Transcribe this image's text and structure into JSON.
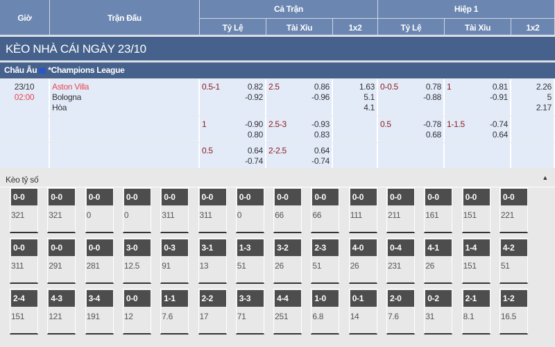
{
  "header": {
    "time": "Giờ",
    "match": "Trận Đấu",
    "full": "Cả Trận",
    "half": "Hiệp 1",
    "hcp": "Tỷ Lệ",
    "ou": "Tài Xỉu",
    "x12": "1x2"
  },
  "band_title": "KÈO NHÀ CÁI NGÀY 23/10",
  "league": {
    "region": "Châu Âu",
    "name": "*Champions League",
    "flag_icon": "eu-flag-icon"
  },
  "match": {
    "date": "23/10",
    "time": "02:00",
    "home": "Aston Villa",
    "away": "Bologna",
    "draw": "Hòa"
  },
  "rows": [
    {
      "ft_hcp": "0.5-1",
      "ft_hcp_o": [
        "0.82",
        "-0.92"
      ],
      "ft_ou": "2.5",
      "ft_ou_o": [
        "0.86",
        "-0.96"
      ],
      "ft_1x2": [
        "1.63",
        "5.1",
        "4.1"
      ],
      "h1_hcp": "0-0.5",
      "h1_hcp_o": [
        "0.78",
        "-0.88"
      ],
      "h1_ou": "1",
      "h1_ou_o": [
        "0.81",
        "-0.91"
      ],
      "h1_1x2": [
        "2.26",
        "5",
        "2.17"
      ]
    },
    {
      "ft_hcp": "1",
      "ft_hcp_o": [
        "-0.90",
        "0.80"
      ],
      "ft_ou": "2.5-3",
      "ft_ou_o": [
        "-0.93",
        "0.83"
      ],
      "ft_1x2": [],
      "h1_hcp": "0.5",
      "h1_hcp_o": [
        "-0.78",
        "0.68"
      ],
      "h1_ou": "1-1.5",
      "h1_ou_o": [
        "-0.74",
        "0.64"
      ],
      "h1_1x2": []
    },
    {
      "ft_hcp": "0.5",
      "ft_hcp_o": [
        "0.64",
        "-0.74"
      ],
      "ft_ou": "2-2.5",
      "ft_ou_o": [
        "0.64",
        "-0.74"
      ],
      "ft_1x2": [],
      "h1_hcp": "",
      "h1_hcp_o": [],
      "h1_ou": "",
      "h1_ou_o": [],
      "h1_1x2": []
    }
  ],
  "score_section": {
    "title": "Kèo tỷ số",
    "cells": [
      [
        "0-0",
        "321"
      ],
      [
        "0-0",
        "321"
      ],
      [
        "0-0",
        "0"
      ],
      [
        "0-0",
        "0"
      ],
      [
        "0-0",
        "311"
      ],
      [
        "0-0",
        "311"
      ],
      [
        "0-0",
        "0"
      ],
      [
        "0-0",
        "66"
      ],
      [
        "0-0",
        "66"
      ],
      [
        "0-0",
        "111"
      ],
      [
        "0-0",
        "211"
      ],
      [
        "0-0",
        "161"
      ],
      [
        "0-0",
        "151"
      ],
      [
        "0-0",
        "221"
      ],
      [
        "0-0",
        "311"
      ],
      [
        "0-0",
        "291"
      ],
      [
        "0-0",
        "281"
      ],
      [
        "3-0",
        "12.5"
      ],
      [
        "0-3",
        "91"
      ],
      [
        "3-1",
        "13"
      ],
      [
        "1-3",
        "51"
      ],
      [
        "3-2",
        "26"
      ],
      [
        "2-3",
        "51"
      ],
      [
        "4-0",
        "26"
      ],
      [
        "0-4",
        "231"
      ],
      [
        "4-1",
        "26"
      ],
      [
        "1-4",
        "151"
      ],
      [
        "4-2",
        "51"
      ],
      [
        "2-4",
        "151"
      ],
      [
        "4-3",
        "121"
      ],
      [
        "3-4",
        "191"
      ],
      [
        "0-0",
        "12"
      ],
      [
        "1-1",
        "7.6"
      ],
      [
        "2-2",
        "17"
      ],
      [
        "3-3",
        "71"
      ],
      [
        "4-4",
        "251"
      ],
      [
        "1-0",
        "6.8"
      ],
      [
        "0-1",
        "14"
      ],
      [
        "2-0",
        "7.6"
      ],
      [
        "0-2",
        "31"
      ],
      [
        "2-1",
        "8.1"
      ],
      [
        "1-2",
        "16.5"
      ]
    ]
  }
}
